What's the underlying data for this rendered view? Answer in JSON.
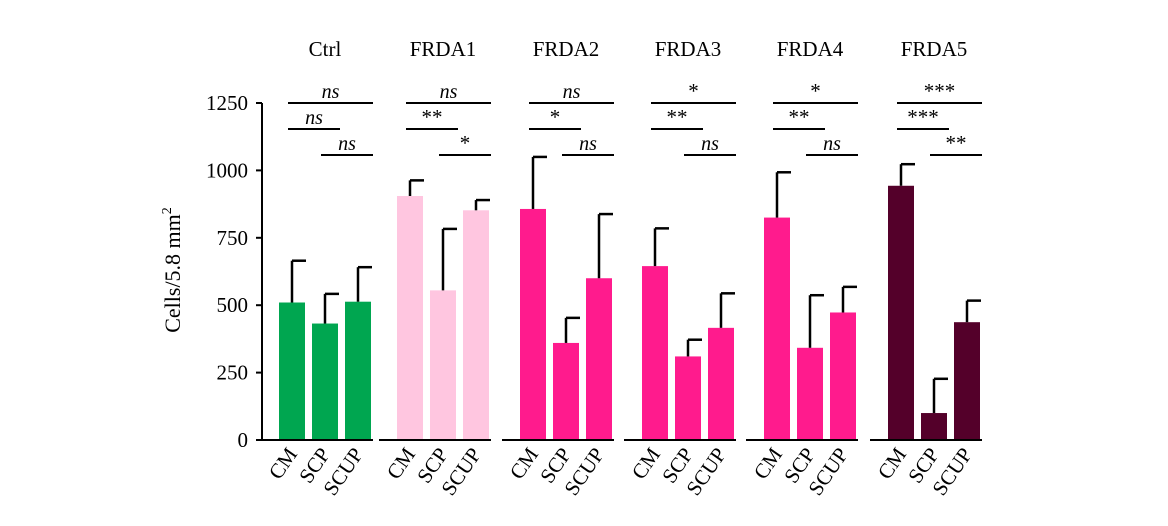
{
  "chart_data": {
    "type": "bar",
    "ylabel": "Cells/5.8 mm",
    "ylabel_superscript": "2",
    "ylim": [
      0,
      1250
    ],
    "yticks": [
      {
        "value": 0,
        "label": "0"
      },
      {
        "value": 250,
        "label": "250"
      },
      {
        "value": 500,
        "label": "500"
      },
      {
        "value": 750,
        "label": "750"
      },
      {
        "value": 1000,
        "label": "1000"
      },
      {
        "value": 1250,
        "label": "1250"
      }
    ],
    "grid": false,
    "categories": [
      "CM",
      "SCP",
      "SCUP"
    ],
    "groups": [
      {
        "name": "Ctrl",
        "color": "#00A650",
        "values": [
          510,
          432,
          513
        ],
        "errors": [
          155,
          110,
          128
        ],
        "significance": [
          {
            "pair": [
              0,
              2
            ],
            "label": "ns",
            "italic": true
          },
          {
            "pair": [
              0,
              1
            ],
            "label": "ns",
            "italic": true
          },
          {
            "pair": [
              1,
              2
            ],
            "label": "ns",
            "italic": true
          }
        ]
      },
      {
        "name": "FRDA1",
        "color": "#FFC6E0",
        "values": [
          905,
          555,
          852
        ],
        "errors": [
          58,
          228,
          38
        ],
        "significance": [
          {
            "pair": [
              0,
              2
            ],
            "label": "ns",
            "italic": true
          },
          {
            "pair": [
              0,
              1
            ],
            "label": "**",
            "italic": false
          },
          {
            "pair": [
              1,
              2
            ],
            "label": "*",
            "italic": false
          }
        ]
      },
      {
        "name": "FRDA2",
        "color": "#FF1B8D",
        "values": [
          857,
          360,
          600
        ],
        "errors": [
          193,
          93,
          238
        ],
        "significance": [
          {
            "pair": [
              0,
              2
            ],
            "label": "ns",
            "italic": true
          },
          {
            "pair": [
              0,
              1
            ],
            "label": "*",
            "italic": false
          },
          {
            "pair": [
              1,
              2
            ],
            "label": "ns",
            "italic": true
          }
        ]
      },
      {
        "name": "FRDA3",
        "color": "#FF1B8D",
        "values": [
          645,
          310,
          416
        ],
        "errors": [
          140,
          62,
          128
        ],
        "significance": [
          {
            "pair": [
              0,
              2
            ],
            "label": "*",
            "italic": false
          },
          {
            "pair": [
              0,
              1
            ],
            "label": "**",
            "italic": false
          },
          {
            "pair": [
              1,
              2
            ],
            "label": "ns",
            "italic": true
          }
        ]
      },
      {
        "name": "FRDA4",
        "color": "#FF1B8D",
        "values": [
          825,
          342,
          473
        ],
        "errors": [
          168,
          195,
          95
        ],
        "significance": [
          {
            "pair": [
              0,
              2
            ],
            "label": "*",
            "italic": false
          },
          {
            "pair": [
              0,
              1
            ],
            "label": "**",
            "italic": false
          },
          {
            "pair": [
              1,
              2
            ],
            "label": "ns",
            "italic": true
          }
        ]
      },
      {
        "name": "FRDA5",
        "color": "#54002A",
        "values": [
          943,
          100,
          437
        ],
        "errors": [
          80,
          127,
          80
        ],
        "significance": [
          {
            "pair": [
              0,
              2
            ],
            "label": "***",
            "italic": false
          },
          {
            "pair": [
              0,
              1
            ],
            "label": "***",
            "italic": false
          },
          {
            "pair": [
              1,
              2
            ],
            "label": "**",
            "italic": false
          }
        ]
      }
    ]
  }
}
